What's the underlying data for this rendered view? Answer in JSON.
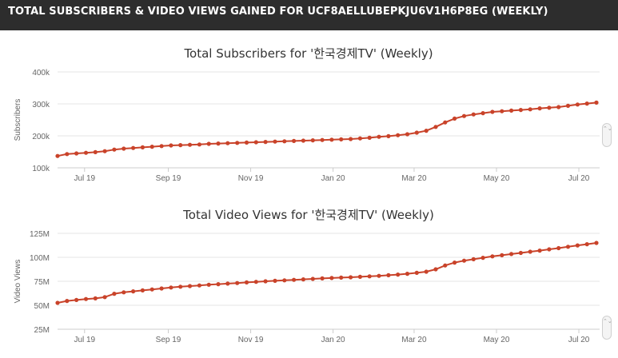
{
  "header": {
    "title": "TOTAL SUBSCRIBERS & VIDEO VIEWS GAINED FOR UCF8AELLUBEPKJU6V1H6P8EG (WEEKLY)"
  },
  "scroll_icon": "⌃⌄",
  "chart_data": [
    {
      "type": "line",
      "title": "Total Subscribers for '한국경제TV' (Weekly)",
      "ylabel": "Subscribers",
      "xlabel": "",
      "x_ticks": [
        "Jul 19",
        "Sep 19",
        "Nov 19",
        "Jan 20",
        "Mar 20",
        "May 20",
        "Jul 20"
      ],
      "y_ticks": [
        "100k",
        "200k",
        "300k",
        "400k"
      ],
      "ylim": [
        100000,
        400000
      ],
      "grid": true,
      "color": "#c9432a",
      "x": [
        "2019-06-11",
        "2019-06-18",
        "2019-06-25",
        "2019-07-02",
        "2019-07-09",
        "2019-07-16",
        "2019-07-23",
        "2019-07-30",
        "2019-08-06",
        "2019-08-13",
        "2019-08-20",
        "2019-08-27",
        "2019-09-03",
        "2019-09-10",
        "2019-09-17",
        "2019-09-24",
        "2019-10-01",
        "2019-10-08",
        "2019-10-15",
        "2019-10-22",
        "2019-10-29",
        "2019-11-05",
        "2019-11-12",
        "2019-11-19",
        "2019-11-26",
        "2019-12-03",
        "2019-12-10",
        "2019-12-17",
        "2019-12-24",
        "2019-12-31",
        "2020-01-07",
        "2020-01-14",
        "2020-01-21",
        "2020-01-28",
        "2020-02-04",
        "2020-02-11",
        "2020-02-18",
        "2020-02-25",
        "2020-03-03",
        "2020-03-10",
        "2020-03-17",
        "2020-03-24",
        "2020-03-31",
        "2020-04-07",
        "2020-04-14",
        "2020-04-21",
        "2020-04-28",
        "2020-05-05",
        "2020-05-12",
        "2020-05-19",
        "2020-05-26",
        "2020-06-02",
        "2020-06-09",
        "2020-06-16",
        "2020-06-23",
        "2020-06-30",
        "2020-07-07",
        "2020-07-14"
      ],
      "values": [
        137000,
        143000,
        145000,
        147000,
        149000,
        152000,
        157000,
        160000,
        162000,
        164000,
        166000,
        168000,
        170000,
        171000,
        172000,
        173000,
        175000,
        176000,
        177000,
        178000,
        179000,
        180000,
        181000,
        182000,
        183000,
        184000,
        185000,
        186000,
        187000,
        188000,
        189000,
        190000,
        192000,
        194000,
        197000,
        199000,
        202000,
        205000,
        210000,
        216000,
        228000,
        242000,
        254000,
        262000,
        267000,
        271000,
        275000,
        277000,
        279000,
        281000,
        283000,
        286000,
        288000,
        290000,
        294000,
        298000,
        301000,
        304000
      ]
    },
    {
      "type": "line",
      "title": "Total Video Views for '한국경제TV' (Weekly)",
      "ylabel": "Video Views",
      "xlabel": "",
      "x_ticks": [
        "Jul 19",
        "Sep 19",
        "Nov 19",
        "Jan 20",
        "Mar 20",
        "May 20",
        "Jul 20"
      ],
      "y_ticks": [
        "25M",
        "50M",
        "75M",
        "100M",
        "125M"
      ],
      "ylim": [
        25000000,
        125000000
      ],
      "grid": true,
      "color": "#c9432a",
      "x": [
        "2019-06-11",
        "2019-06-18",
        "2019-06-25",
        "2019-07-02",
        "2019-07-09",
        "2019-07-16",
        "2019-07-23",
        "2019-07-30",
        "2019-08-06",
        "2019-08-13",
        "2019-08-20",
        "2019-08-27",
        "2019-09-03",
        "2019-09-10",
        "2019-09-17",
        "2019-09-24",
        "2019-10-01",
        "2019-10-08",
        "2019-10-15",
        "2019-10-22",
        "2019-10-29",
        "2019-11-05",
        "2019-11-12",
        "2019-11-19",
        "2019-11-26",
        "2019-12-03",
        "2019-12-10",
        "2019-12-17",
        "2019-12-24",
        "2019-12-31",
        "2020-01-07",
        "2020-01-14",
        "2020-01-21",
        "2020-01-28",
        "2020-02-04",
        "2020-02-11",
        "2020-02-18",
        "2020-02-25",
        "2020-03-03",
        "2020-03-10",
        "2020-03-17",
        "2020-03-24",
        "2020-03-31",
        "2020-04-07",
        "2020-04-14",
        "2020-04-21",
        "2020-04-28",
        "2020-05-05",
        "2020-05-12",
        "2020-05-19",
        "2020-05-26",
        "2020-06-02",
        "2020-06-09",
        "2020-06-16",
        "2020-06-23",
        "2020-06-30",
        "2020-07-07",
        "2020-07-14"
      ],
      "values": [
        52500000,
        54500000,
        55500000,
        56500000,
        57200000,
        58500000,
        62000000,
        63500000,
        64500000,
        65500000,
        66500000,
        67500000,
        68500000,
        69300000,
        70000000,
        70700000,
        71400000,
        72000000,
        72600000,
        73200000,
        73800000,
        74400000,
        75000000,
        75500000,
        76000000,
        76500000,
        77000000,
        77500000,
        78000000,
        78400000,
        78800000,
        79200000,
        79700000,
        80200000,
        80700000,
        81300000,
        82000000,
        82800000,
        83800000,
        85000000,
        87500000,
        91500000,
        94500000,
        96500000,
        98000000,
        99500000,
        101000000,
        102200000,
        103400000,
        104600000,
        105800000,
        107000000,
        108300000,
        109600000,
        111000000,
        112400000,
        113700000,
        115000000
      ]
    }
  ]
}
